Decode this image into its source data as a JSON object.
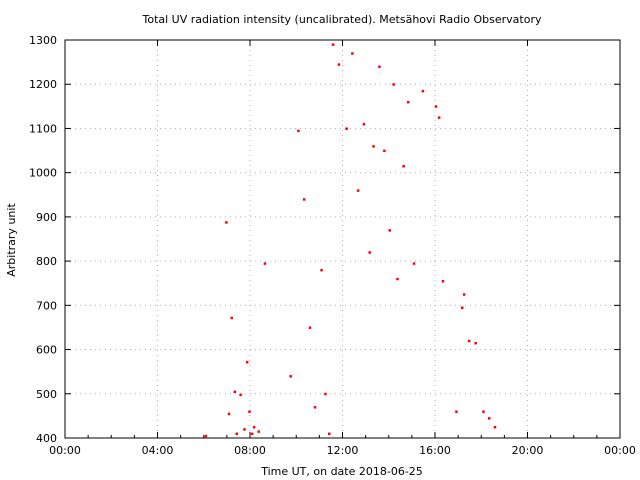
{
  "chart_data": {
    "type": "scatter",
    "title": "Total UV radiation intensity (uncalibrated). Metsähovi Radio Observatory",
    "xlabel": "Time UT, on date 2018-06-25",
    "ylabel": "Arbitrary unit",
    "xlim": [
      "00:00",
      "24:00"
    ],
    "ylim": [
      400,
      1300
    ],
    "x_ticks": [
      "00:00",
      "04:00",
      "08:00",
      "12:00",
      "16:00",
      "20:00",
      "00:00"
    ],
    "y_ticks": [
      400,
      500,
      600,
      700,
      800,
      900,
      1000,
      1100,
      1200,
      1300
    ],
    "grid": true,
    "marker_color": "#ff0000",
    "series": [
      {
        "x": [
          "06:05",
          "06:58",
          "07:05",
          "07:12",
          "07:20",
          "07:25",
          "07:35",
          "07:45",
          "07:52",
          "07:58",
          "08:05",
          "08:10",
          "08:22",
          "08:38",
          "09:45",
          "10:05",
          "10:20",
          "10:35",
          "10:48",
          "11:05",
          "11:15",
          "11:25",
          "11:35",
          "11:50",
          "12:10",
          "12:25",
          "12:40",
          "12:55",
          "13:10",
          "13:20",
          "13:35",
          "13:48",
          "14:02",
          "14:12",
          "14:22",
          "14:38",
          "14:50",
          "15:05",
          "15:28",
          "16:02",
          "16:10",
          "16:20",
          "16:55",
          "17:10",
          "17:15",
          "17:28",
          "17:45",
          "18:05",
          "18:20",
          "18:35"
        ],
        "y": [
          405,
          888,
          455,
          672,
          505,
          410,
          498,
          420,
          572,
          460,
          410,
          425,
          415,
          795,
          540,
          1095,
          940,
          650,
          470,
          780,
          500,
          410,
          1290,
          1245,
          1100,
          1270,
          960,
          1110,
          820,
          1060,
          1240,
          1050,
          870,
          1200,
          760,
          1015,
          1160,
          795,
          1185,
          1150,
          1125,
          755,
          460,
          695,
          725,
          620,
          615,
          460,
          445,
          425
        ]
      }
    ]
  }
}
